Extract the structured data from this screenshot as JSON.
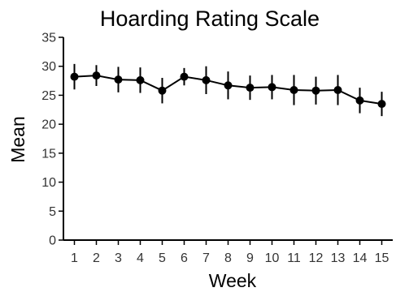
{
  "chart_data": {
    "type": "line",
    "title": "Hoarding Rating Scale",
    "xlabel": "Week",
    "ylabel": "Mean",
    "x": [
      1,
      2,
      3,
      4,
      5,
      6,
      7,
      8,
      9,
      10,
      11,
      12,
      13,
      14,
      15
    ],
    "x_tick_labels": [
      "1",
      "2",
      "3",
      "4",
      "5",
      "6",
      "7",
      "8",
      "9",
      "10",
      "11",
      "12",
      "13",
      "14",
      "15"
    ],
    "y_ticks": [
      0,
      5,
      10,
      15,
      20,
      25,
      30,
      35
    ],
    "y_tick_labels": [
      "0",
      "5",
      "10",
      "15",
      "20",
      "25",
      "30",
      "35"
    ],
    "ylim": [
      0,
      35
    ],
    "xlim": [
      0.5,
      15.5
    ],
    "grid": false,
    "series": [
      {
        "values": [
          28.2,
          28.4,
          27.7,
          27.6,
          25.8,
          28.2,
          27.6,
          26.7,
          26.3,
          26.4,
          25.9,
          25.8,
          25.9,
          24.1,
          23.5
        ],
        "error_low": [
          26.0,
          26.6,
          25.5,
          25.4,
          23.6,
          26.7,
          25.2,
          24.3,
          24.2,
          24.3,
          23.3,
          23.4,
          23.3,
          21.9,
          21.4
        ],
        "error_high": [
          30.4,
          30.2,
          29.9,
          29.8,
          28.0,
          29.7,
          30.0,
          29.1,
          28.4,
          28.5,
          28.5,
          28.2,
          28.5,
          26.3,
          25.6
        ]
      }
    ]
  }
}
